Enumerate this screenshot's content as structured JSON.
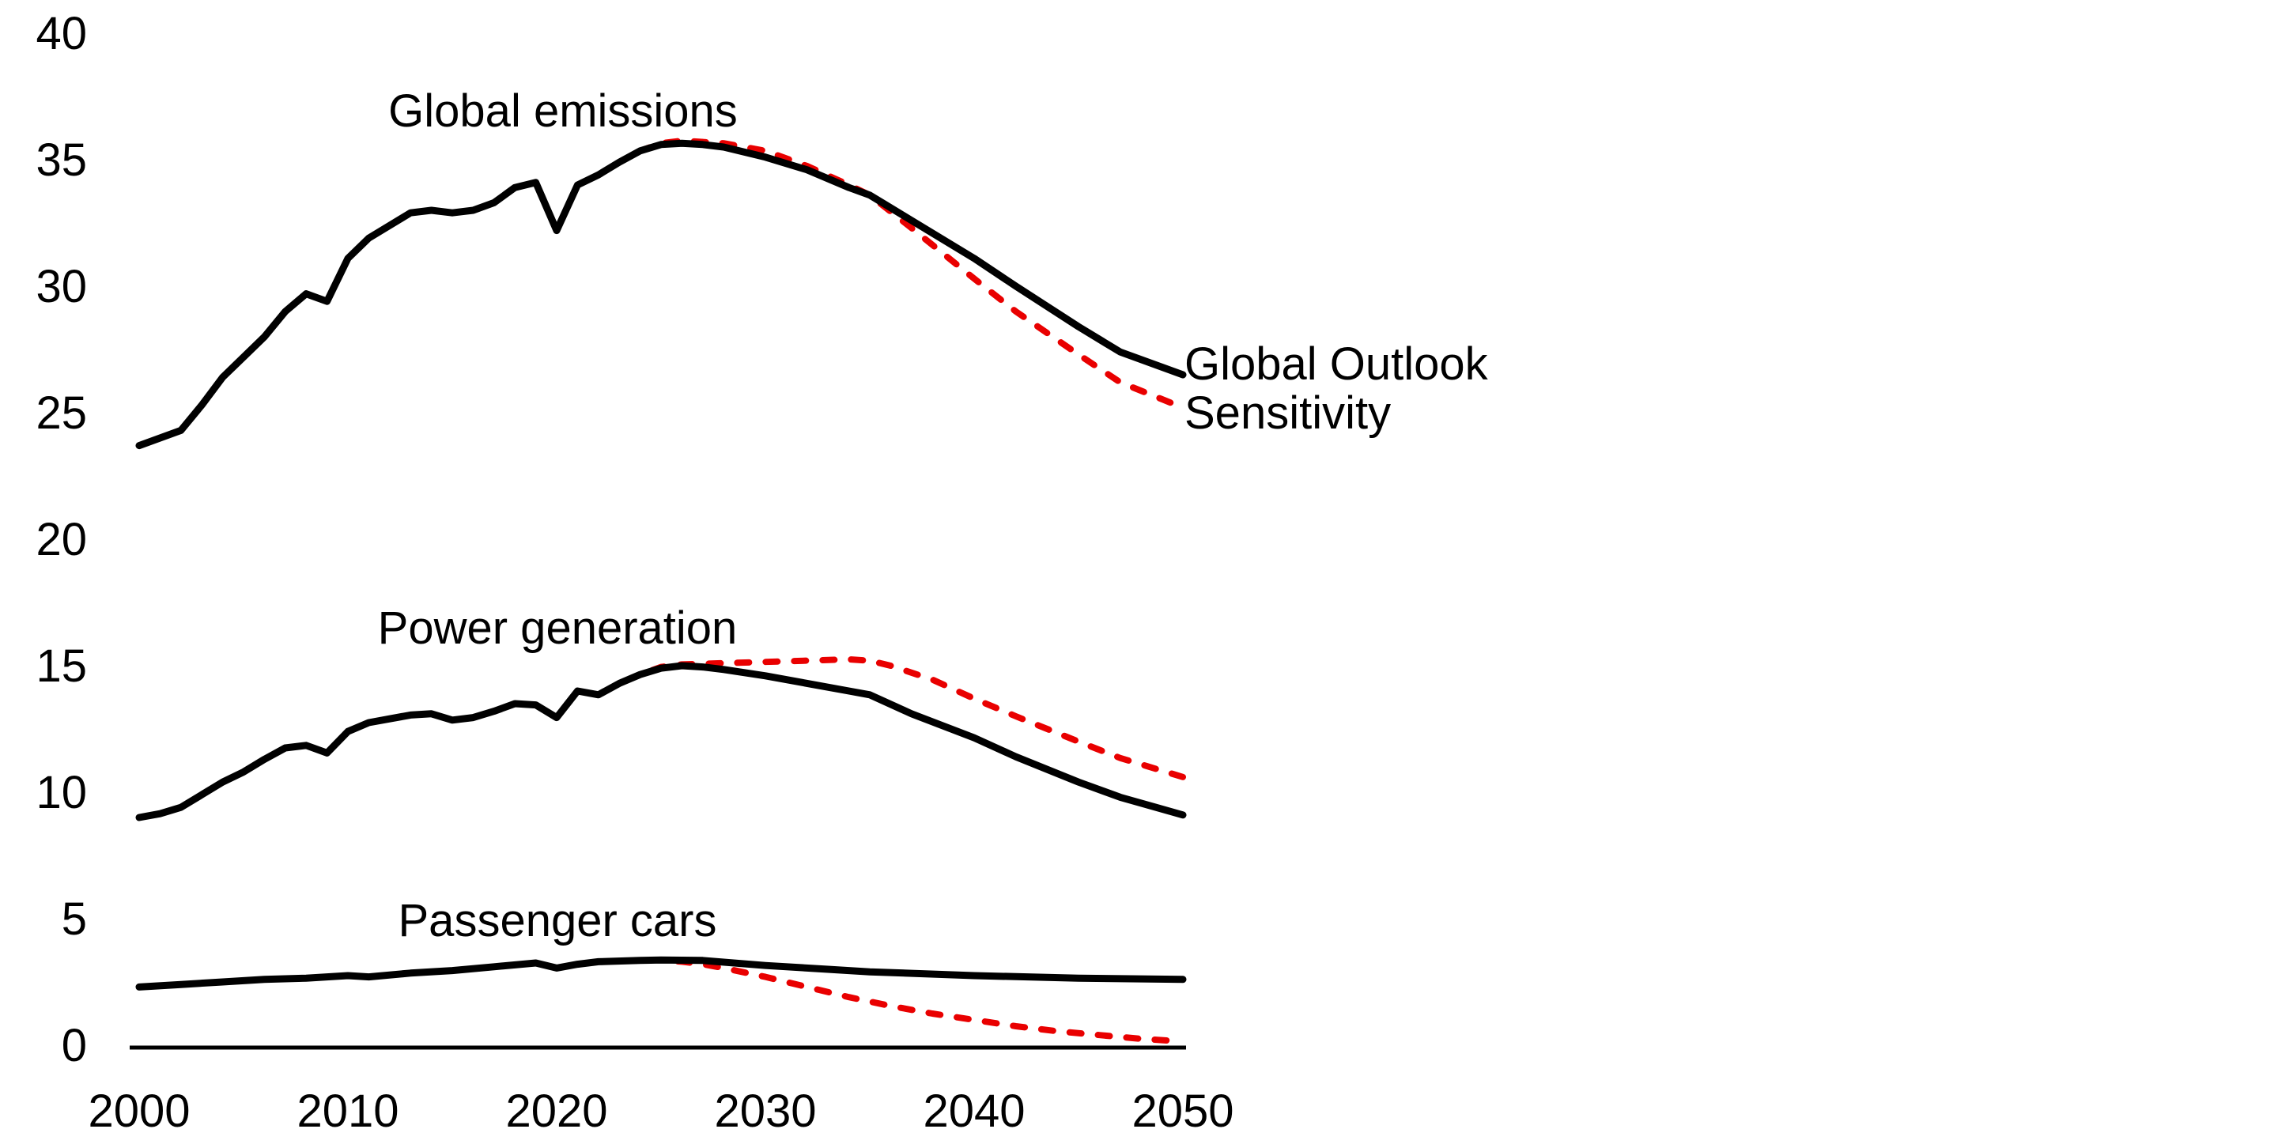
{
  "figure": {
    "background": "#ffffff",
    "unit_scale": "GtCO2 (implied, unlabeled)"
  },
  "legend": {
    "outlook_label": "Global Outlook",
    "sensitivity_label": "Sensitivity"
  },
  "chart_data": {
    "type": "line",
    "title": "",
    "xlabel": "",
    "ylabel": "",
    "xlim": [
      2000,
      2050
    ],
    "ylim": [
      0,
      40
    ],
    "grid": false,
    "legend_position": "right-of-line-ends",
    "x_ticks": [
      2000,
      2010,
      2020,
      2030,
      2040,
      2050
    ],
    "y_ticks": [
      0,
      5,
      10,
      15,
      20,
      25,
      30,
      35,
      40
    ],
    "colors": {
      "outlook": "#000000",
      "sensitivity": "#e90000",
      "axis": "#000000",
      "text": "#000000"
    },
    "panels": [
      {
        "label": "Global emissions",
        "series": [
          {
            "id": "global-emissions-outlook",
            "name": "Global Outlook",
            "role": "outlook",
            "style": "solid",
            "x": [
              2000,
              2001,
              2002,
              2003,
              2004,
              2005,
              2006,
              2007,
              2008,
              2009,
              2010,
              2011,
              2012,
              2013,
              2014,
              2015,
              2016,
              2017,
              2018,
              2019,
              2020,
              2021,
              2022,
              2023,
              2024,
              2025,
              2026,
              2027,
              2028,
              2030,
              2032,
              2034,
              2035,
              2037,
              2040,
              2042,
              2045,
              2047,
              2050
            ],
            "y": [
              23.7,
              24.0,
              24.3,
              25.3,
              26.4,
              27.2,
              28.0,
              29.0,
              29.7,
              29.4,
              31.1,
              31.9,
              32.4,
              32.9,
              33.0,
              32.9,
              33.0,
              33.3,
              33.9,
              34.1,
              32.2,
              34.0,
              34.4,
              34.9,
              35.35,
              35.6,
              35.65,
              35.6,
              35.5,
              35.1,
              34.6,
              33.9,
              33.6,
              32.6,
              31.1,
              30.0,
              28.4,
              27.4,
              26.5
            ]
          },
          {
            "id": "global-emissions-sensitivity",
            "name": "Sensitivity",
            "role": "sensitivity",
            "style": "dashed",
            "x": [
              2000,
              2001,
              2002,
              2003,
              2004,
              2005,
              2006,
              2007,
              2008,
              2009,
              2010,
              2011,
              2012,
              2013,
              2014,
              2015,
              2016,
              2017,
              2018,
              2019,
              2020,
              2021,
              2022,
              2023,
              2024,
              2025,
              2026,
              2028,
              2030,
              2032,
              2034,
              2035,
              2037,
              2040,
              2042,
              2045,
              2047,
              2050
            ],
            "y": [
              23.7,
              24.0,
              24.3,
              25.3,
              26.4,
              27.2,
              28.0,
              29.0,
              29.7,
              29.4,
              31.1,
              31.9,
              32.4,
              32.9,
              33.0,
              32.9,
              33.0,
              33.3,
              33.9,
              34.1,
              32.2,
              34.0,
              34.4,
              34.9,
              35.35,
              35.65,
              35.75,
              35.65,
              35.35,
              34.75,
              34.0,
              33.6,
              32.3,
              30.3,
              29.0,
              27.3,
              26.2,
              25.2
            ]
          }
        ]
      },
      {
        "label": "Power generation",
        "series": [
          {
            "id": "power-generation-outlook",
            "name": "Global Outlook",
            "role": "outlook",
            "style": "solid",
            "x": [
              2000,
              2001,
              2002,
              2003,
              2004,
              2005,
              2006,
              2007,
              2008,
              2009,
              2010,
              2011,
              2012,
              2013,
              2014,
              2015,
              2016,
              2017,
              2018,
              2019,
              2020,
              2021,
              2022,
              2023,
              2024,
              2025,
              2026,
              2027,
              2028,
              2030,
              2032,
              2034,
              2035,
              2037,
              2040,
              2042,
              2045,
              2047,
              2050
            ],
            "y": [
              9.0,
              9.15,
              9.4,
              9.9,
              10.4,
              10.8,
              11.3,
              11.75,
              11.85,
              11.55,
              12.4,
              12.75,
              12.9,
              13.05,
              13.1,
              12.85,
              12.95,
              13.2,
              13.5,
              13.45,
              12.95,
              14.0,
              13.85,
              14.3,
              14.65,
              14.9,
              15.0,
              14.95,
              14.85,
              14.6,
              14.3,
              14.0,
              13.85,
              13.1,
              12.15,
              11.4,
              10.4,
              9.8,
              9.1
            ]
          },
          {
            "id": "power-generation-sensitivity",
            "name": "Sensitivity",
            "role": "sensitivity",
            "style": "dashed",
            "x": [
              2000,
              2001,
              2002,
              2003,
              2004,
              2005,
              2006,
              2007,
              2008,
              2009,
              2010,
              2011,
              2012,
              2013,
              2014,
              2015,
              2016,
              2017,
              2018,
              2019,
              2020,
              2021,
              2022,
              2023,
              2024,
              2025,
              2026,
              2028,
              2030,
              2032,
              2034,
              2035,
              2036,
              2038,
              2040,
              2042,
              2045,
              2047,
              2050
            ],
            "y": [
              9.0,
              9.15,
              9.4,
              9.9,
              10.4,
              10.8,
              11.3,
              11.75,
              11.85,
              11.55,
              12.4,
              12.75,
              12.9,
              13.05,
              13.1,
              12.85,
              12.95,
              13.2,
              13.5,
              13.45,
              12.95,
              14.0,
              13.85,
              14.3,
              14.65,
              14.95,
              15.05,
              15.1,
              15.15,
              15.2,
              15.25,
              15.2,
              15.0,
              14.45,
              13.7,
              13.0,
              12.0,
              11.35,
              10.6
            ]
          }
        ]
      },
      {
        "label": "Passenger cars",
        "series": [
          {
            "id": "passenger-cars-outlook",
            "name": "Global Outlook",
            "role": "outlook",
            "style": "solid",
            "x": [
              2000,
              2002,
              2004,
              2006,
              2008,
              2010,
              2011,
              2013,
              2015,
              2017,
              2019,
              2020,
              2021,
              2022,
              2024,
              2025,
              2027,
              2030,
              2033,
              2035,
              2040,
              2045,
              2050
            ],
            "y": [
              2.3,
              2.4,
              2.5,
              2.6,
              2.65,
              2.75,
              2.7,
              2.85,
              2.95,
              3.1,
              3.25,
              3.05,
              3.2,
              3.3,
              3.35,
              3.37,
              3.35,
              3.15,
              3.0,
              2.9,
              2.75,
              2.65,
              2.6
            ]
          },
          {
            "id": "passenger-cars-sensitivity",
            "name": "Sensitivity",
            "role": "sensitivity",
            "style": "dashed",
            "x": [
              2000,
              2002,
              2004,
              2006,
              2008,
              2010,
              2011,
              2013,
              2015,
              2017,
              2019,
              2020,
              2021,
              2022,
              2024,
              2025,
              2026,
              2027,
              2028,
              2030,
              2032,
              2034,
              2036,
              2038,
              2040,
              2042,
              2044,
              2046,
              2048,
              2050
            ],
            "y": [
              2.3,
              2.4,
              2.5,
              2.6,
              2.65,
              2.75,
              2.7,
              2.85,
              2.95,
              3.1,
              3.25,
              3.05,
              3.2,
              3.3,
              3.35,
              3.37,
              3.3,
              3.2,
              3.05,
              2.7,
              2.3,
              1.9,
              1.55,
              1.25,
              1.0,
              0.75,
              0.55,
              0.4,
              0.25,
              0.15
            ]
          }
        ]
      }
    ]
  }
}
